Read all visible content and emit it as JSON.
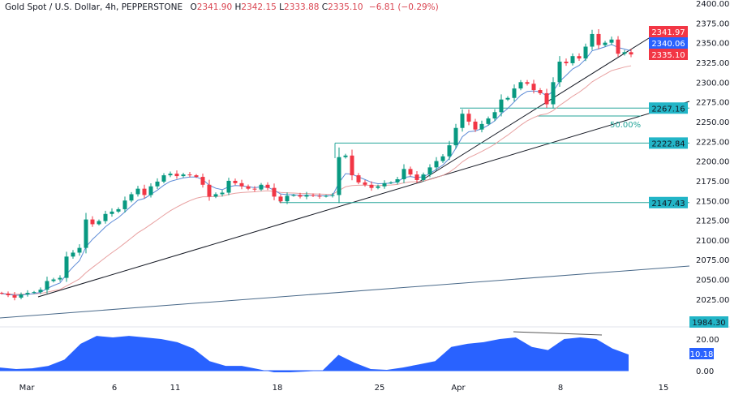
{
  "header": {
    "symbol": "Gold Spot / U.S. Dollar, 4h, PEPPERSTONE",
    "open_label": "O",
    "open": "2341.90",
    "high_label": "H",
    "high": "2342.15",
    "low_label": "L",
    "low": "2333.88",
    "close_label": "C",
    "close": "2335.10",
    "change": "−6.81 (−0.29%)"
  },
  "colors": {
    "up": "#089981",
    "down": "#f23645",
    "fast_ma": "#5b8ad6",
    "slow_ma": "#e8a0a0",
    "level": "#26a69a",
    "indicator": "#2962ff",
    "trend": "#131722",
    "long_trend": "#4a6a8a"
  },
  "chart_data": {
    "type": "candlestick",
    "ylim": [
      2000,
      2400
    ],
    "y_ticks": [
      "2400.00",
      "2375.00",
      "2350.00",
      "2325.00",
      "2300.00",
      "2275.00",
      "2250.00",
      "2225.00",
      "2200.00",
      "2175.00",
      "2150.00",
      "2125.00",
      "2100.00",
      "2075.00",
      "2050.00",
      "2025.00"
    ],
    "y_tick_values": [
      2400,
      2375,
      2350,
      2325,
      2300,
      2275,
      2250,
      2225,
      2200,
      2175,
      2150,
      2125,
      2100,
      2075,
      2050,
      2025
    ],
    "x_ticks": [
      "Mar",
      "6",
      "11",
      "18",
      "25",
      "Apr",
      "8",
      "15"
    ],
    "first_open": 2033,
    "closes": [
      2032,
      2030,
      2027,
      2031,
      2033,
      2034,
      2037,
      2048,
      2050,
      2052,
      2079,
      2084,
      2090,
      2126,
      2120,
      2124,
      2133,
      2136,
      2139,
      2150,
      2158,
      2165,
      2157,
      2168,
      2174,
      2182,
      2184,
      2181,
      2183,
      2182,
      2180,
      2170,
      2155,
      2158,
      2160,
      2175,
      2172,
      2168,
      2165,
      2164,
      2170,
      2166,
      2155,
      2149,
      2156,
      2157,
      2155,
      2157,
      2156,
      2155,
      2156,
      2157,
      2205,
      2207,
      2182,
      2173,
      2170,
      2166,
      2168,
      2172,
      2173,
      2177,
      2190,
      2183,
      2176,
      2183,
      2192,
      2200,
      2206,
      2220,
      2242,
      2260,
      2250,
      2240,
      2247,
      2254,
      2262,
      2278,
      2280,
      2292,
      2300,
      2298,
      2290,
      2286,
      2272,
      2300,
      2326,
      2324,
      2333,
      2330,
      2345,
      2361,
      2347,
      2350,
      2354,
      2336,
      2338,
      2335.1
    ],
    "levels": [
      {
        "price": 2267.16,
        "label": "2267.16"
      },
      {
        "price": 2222.84,
        "label": "2222.84"
      },
      {
        "price": 2147.43,
        "label": "2147.43"
      }
    ],
    "fib_label": "50.00%",
    "price_tags": [
      {
        "label": "2341.97",
        "color": "#f23645",
        "price": 2341.97
      },
      {
        "label": "2340.06",
        "color": "#2962ff",
        "price": 2340.06
      },
      {
        "label": "2335.10",
        "color": "#f23645",
        "price": 2335.1
      }
    ],
    "bottom_tag": "1984.30",
    "indicator": {
      "ylim": [
        -2,
        24
      ],
      "y_ticks": [
        "20.00",
        "0.00"
      ],
      "y_tick_values": [
        20,
        0
      ],
      "values": [
        2,
        1,
        1.5,
        3,
        7,
        17,
        22,
        21,
        22,
        21,
        20,
        18,
        14,
        6,
        3,
        3,
        1,
        -1,
        -1,
        -0.5,
        0,
        10,
        5,
        1,
        0.5,
        2,
        4,
        6,
        15,
        17,
        18,
        20,
        21,
        15,
        13,
        20,
        21,
        20,
        14,
        10.18
      ],
      "last_label": "10.18"
    }
  }
}
